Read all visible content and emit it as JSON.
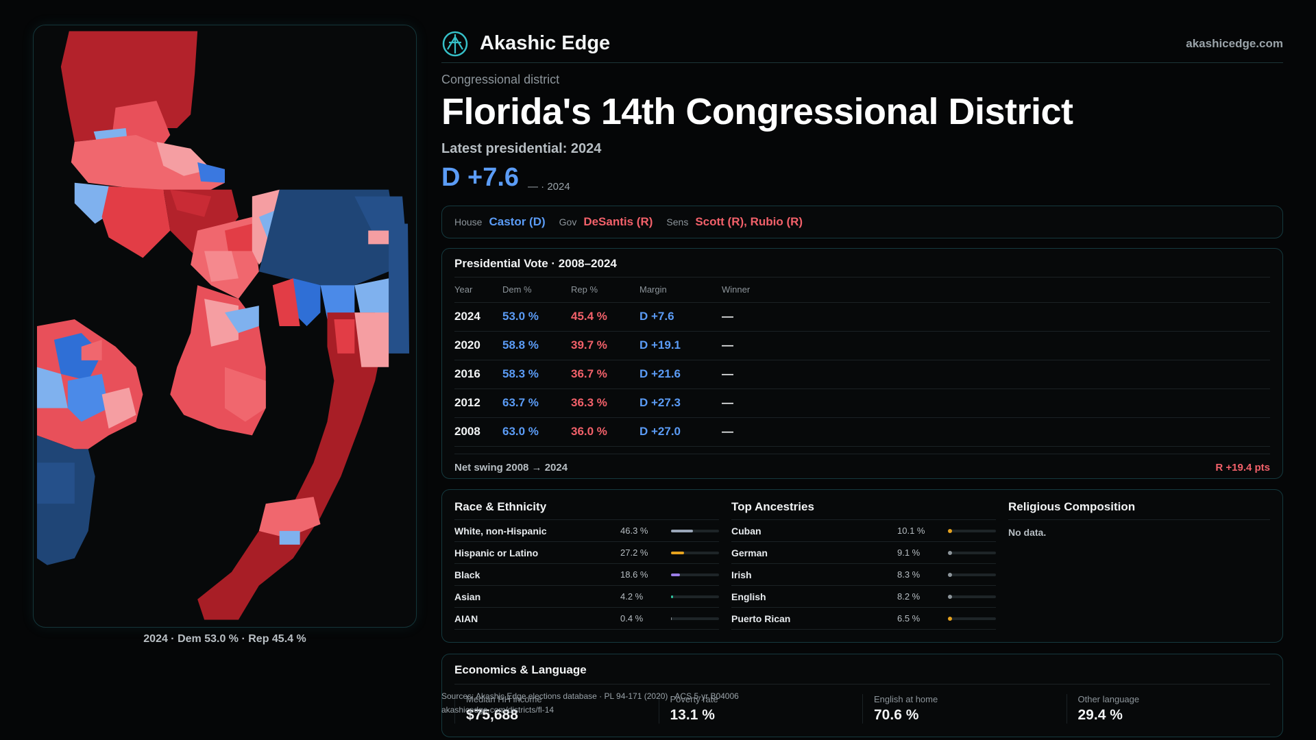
{
  "map_caption": "2024 · Dem 53.0 % · Rep 45.4 %",
  "header": {
    "brand": "Akashic Edge",
    "site": "akashicedge.com"
  },
  "kicker": "Congressional district",
  "title": "Florida's 14th Congressional District",
  "latest_label": "Latest presidential: 2024",
  "margin_big": "D +7.6",
  "margin_sub": "— · 2024",
  "reps": {
    "house_label": "House",
    "house": "Castor (D)",
    "gov_label": "Gov",
    "gov": "DeSantis (R)",
    "sens_label": "Sens",
    "sens": "Scott (R), Rubio (R)"
  },
  "presidential": {
    "title": "Presidential Vote · 2008–2024",
    "headers": [
      "Year",
      "Dem %",
      "Rep %",
      "Margin",
      "Winner"
    ],
    "rows": [
      {
        "year": "2024",
        "dem": "53.0 %",
        "rep": "45.4 %",
        "margin": "D +7.6",
        "winner": "—"
      },
      {
        "year": "2020",
        "dem": "58.8 %",
        "rep": "39.7 %",
        "margin": "D +19.1",
        "winner": "—"
      },
      {
        "year": "2016",
        "dem": "58.3 %",
        "rep": "36.7 %",
        "margin": "D +21.6",
        "winner": "—"
      },
      {
        "year": "2012",
        "dem": "63.7 %",
        "rep": "36.3 %",
        "margin": "D +27.3",
        "winner": "—"
      },
      {
        "year": "2008",
        "dem": "63.0 %",
        "rep": "36.0 %",
        "margin": "D +27.0",
        "winner": "—"
      }
    ],
    "swing_label": "Net swing 2008 → 2024",
    "swing_value": "R +19.4 pts"
  },
  "race": {
    "title": "Race & Ethnicity",
    "rows": [
      {
        "name": "White, non-Hispanic",
        "pct": "46.3 %",
        "value": 46.3,
        "color": "#9aa6b8"
      },
      {
        "name": "Hispanic or Latino",
        "pct": "27.2 %",
        "value": 27.2,
        "color": "#e6a21e"
      },
      {
        "name": "Black",
        "pct": "18.6 %",
        "value": 18.6,
        "color": "#9b7ee8"
      },
      {
        "name": "Asian",
        "pct": "4.2 %",
        "value": 4.2,
        "color": "#2fc4a0"
      },
      {
        "name": "AIAN",
        "pct": "0.4 %",
        "value": 0.4,
        "color": "#8d959b"
      }
    ]
  },
  "ancestry": {
    "title": "Top Ancestries",
    "rows": [
      {
        "name": "Cuban",
        "pct": "10.1 %",
        "color": "#e6a21e"
      },
      {
        "name": "German",
        "pct": "9.1 %",
        "color": "#8d959b"
      },
      {
        "name": "Irish",
        "pct": "8.3 %",
        "color": "#8d959b"
      },
      {
        "name": "English",
        "pct": "8.2 %",
        "color": "#8d959b"
      },
      {
        "name": "Puerto Rican",
        "pct": "6.5 %",
        "color": "#e6a21e"
      }
    ]
  },
  "religion": {
    "title": "Religious Composition",
    "empty": "No data."
  },
  "economics": {
    "title": "Economics & Language",
    "cells": [
      {
        "label": "Median HH income",
        "value": "$75,688"
      },
      {
        "label": "Poverty rate",
        "value": "13.1 %"
      },
      {
        "label": "English at home",
        "value": "70.6 %"
      },
      {
        "label": "Other language",
        "value": "29.4 %"
      }
    ]
  },
  "sources": {
    "line1": "Sources: Akashic Edge elections database · PL 94-171 (2020) · ACS 5-yr B04006",
    "line2": "akashicedge.com/districts/fl-14"
  }
}
